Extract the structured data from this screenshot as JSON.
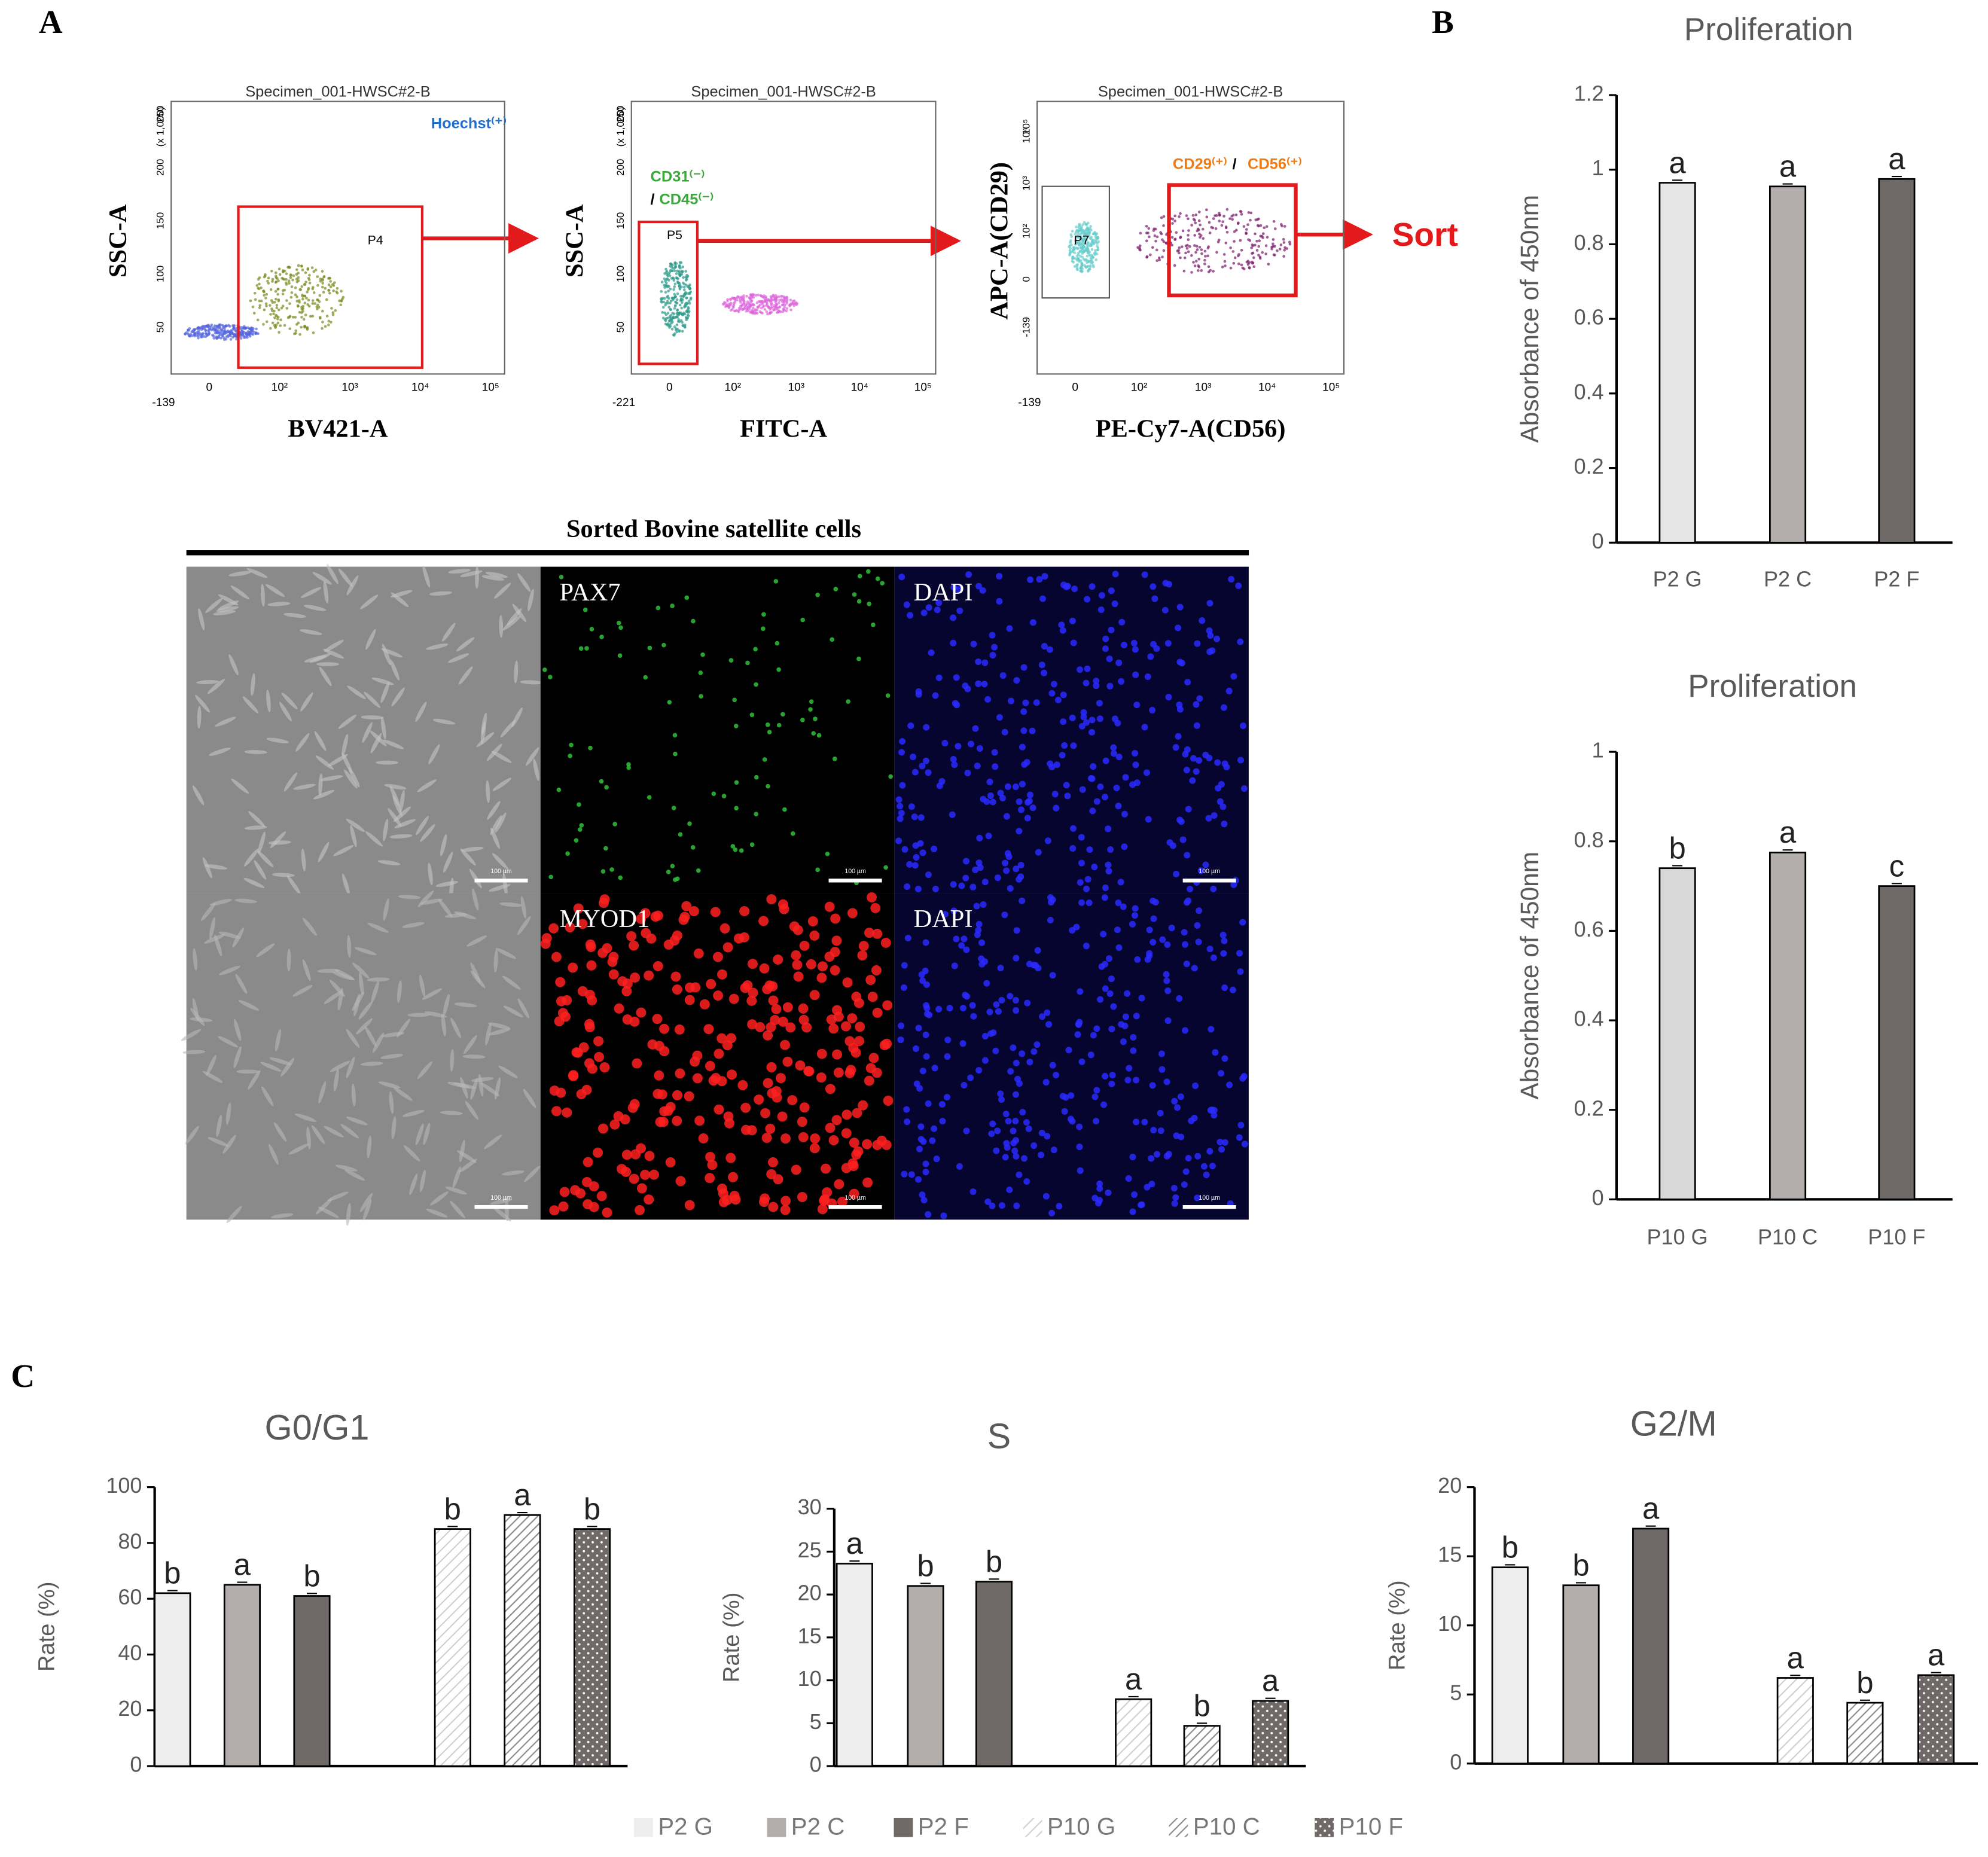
{
  "panel_labels": [
    "A",
    "B",
    "C"
  ],
  "flow_panels": [
    {
      "title": "Specimen_001-HWSC#2-B",
      "xlabel": "BV421-A",
      "ylabel": "SSC-A",
      "gate": "P4",
      "annotations": [
        "Hoechst⁽⁺⁾"
      ],
      "yticklabels": [
        "50",
        "100",
        "150",
        "200",
        "250",
        "(x 1,000)"
      ],
      "xticklabels": [
        "-139",
        "0",
        "10²",
        "10³",
        "10⁴",
        "10⁵"
      ]
    },
    {
      "title": "Specimen_001-HWSC#2-B",
      "xlabel": "FITC-A",
      "ylabel": "SSC-A",
      "gate": "P5",
      "annotations": [
        "CD31⁽⁻⁾",
        "/",
        "CD45⁽⁻⁾"
      ],
      "yticklabels": [
        "50",
        "100",
        "150",
        "200",
        "250",
        "(x 1,000)"
      ],
      "xticklabels": [
        "-221",
        "0",
        "10²",
        "10³",
        "10⁴",
        "10⁵"
      ]
    },
    {
      "title": "Specimen_001-HWSC#2-B",
      "xlabel": "PE-Cy7-A(CD56)",
      "ylabel": "APC-A(CD29)",
      "gate": "P7",
      "annotations": [
        "CD29⁽⁺⁾",
        "/",
        "CD56⁽⁺⁾"
      ],
      "yticklabels": [
        "-139",
        "0",
        "10²",
        "10³",
        "10⁴",
        "10⁵"
      ],
      "xticklabels": [
        "-139",
        "0",
        "10²",
        "10³",
        "10⁴",
        "10⁵"
      ]
    }
  ],
  "sort_label": "Sort",
  "microscopy": {
    "title": "Sorted Bovine satellite cells",
    "labels": [
      "PAX7",
      "DAPI",
      "MYOD1",
      "DAPI"
    ],
    "scale_bar": "100 µm"
  },
  "legend": {
    "names": [
      "P2 G",
      "P2 C",
      "P2 F",
      "P10 G",
      "P10 C",
      "P10 F"
    ],
    "colors": [
      "#eeeeee",
      "#b3adac",
      "#6f6968",
      "#ffffff",
      "#ffffff",
      "#6f6968"
    ],
    "patterns": [
      "solid",
      "solid",
      "solid",
      "light-diagonal",
      "hatch",
      "dots"
    ]
  },
  "chart_data": [
    {
      "type": "bar",
      "title": "Proliferation",
      "ylabel": "Absorbance of 450nm",
      "categories": [
        "P2 G",
        "P2 C",
        "P2 F"
      ],
      "values": [
        0.965,
        0.955,
        0.975
      ],
      "annotations": [
        "a",
        "a",
        "a"
      ],
      "colors": [
        "#e6e6e6",
        "#b3adac",
        "#6f6968"
      ],
      "ylim": [
        0,
        1.2
      ],
      "yticks": [
        0,
        0.2,
        0.4,
        0.6,
        0.8,
        1,
        1.2
      ]
    },
    {
      "type": "bar",
      "title": "Proliferation",
      "ylabel": "Absorbance of 450nm",
      "categories": [
        "P10 G",
        "P10 C",
        "P10 F"
      ],
      "values": [
        0.74,
        0.775,
        0.7
      ],
      "annotations": [
        "b",
        "a",
        "c"
      ],
      "colors": [
        "#d8d8d8",
        "#b3adac",
        "#6f6968"
      ],
      "ylim": [
        0,
        1
      ],
      "yticks": [
        0,
        0.2,
        0.4,
        0.6,
        0.8,
        1
      ]
    },
    {
      "type": "bar",
      "title": "G0/G1",
      "ylabel": "Rate (%)",
      "values": [
        62,
        65,
        61,
        85,
        90,
        85
      ],
      "annotations": [
        "b",
        "a",
        "b",
        "b",
        "a",
        "b"
      ],
      "ylim": [
        0,
        100
      ],
      "yticks": [
        0,
        20,
        40,
        60,
        80,
        100
      ]
    },
    {
      "type": "bar",
      "title": "S",
      "ylabel": "Rate (%)",
      "values": [
        23.6,
        21,
        21.5,
        7.8,
        4.7,
        7.6
      ],
      "annotations": [
        "a",
        "b",
        "b",
        "a",
        "b",
        "a"
      ],
      "ylim": [
        0,
        30
      ],
      "yticks": [
        0,
        5,
        10,
        15,
        20,
        25,
        30
      ]
    },
    {
      "type": "bar",
      "title": "G2/M",
      "ylabel": "Rate (%)",
      "values": [
        14.2,
        12.9,
        17,
        6.2,
        4.4,
        6.4
      ],
      "annotations": [
        "b",
        "b",
        "a",
        "a",
        "b",
        "a"
      ],
      "ylim": [
        0,
        20
      ],
      "yticks": [
        0,
        5,
        10,
        15,
        20
      ]
    }
  ]
}
